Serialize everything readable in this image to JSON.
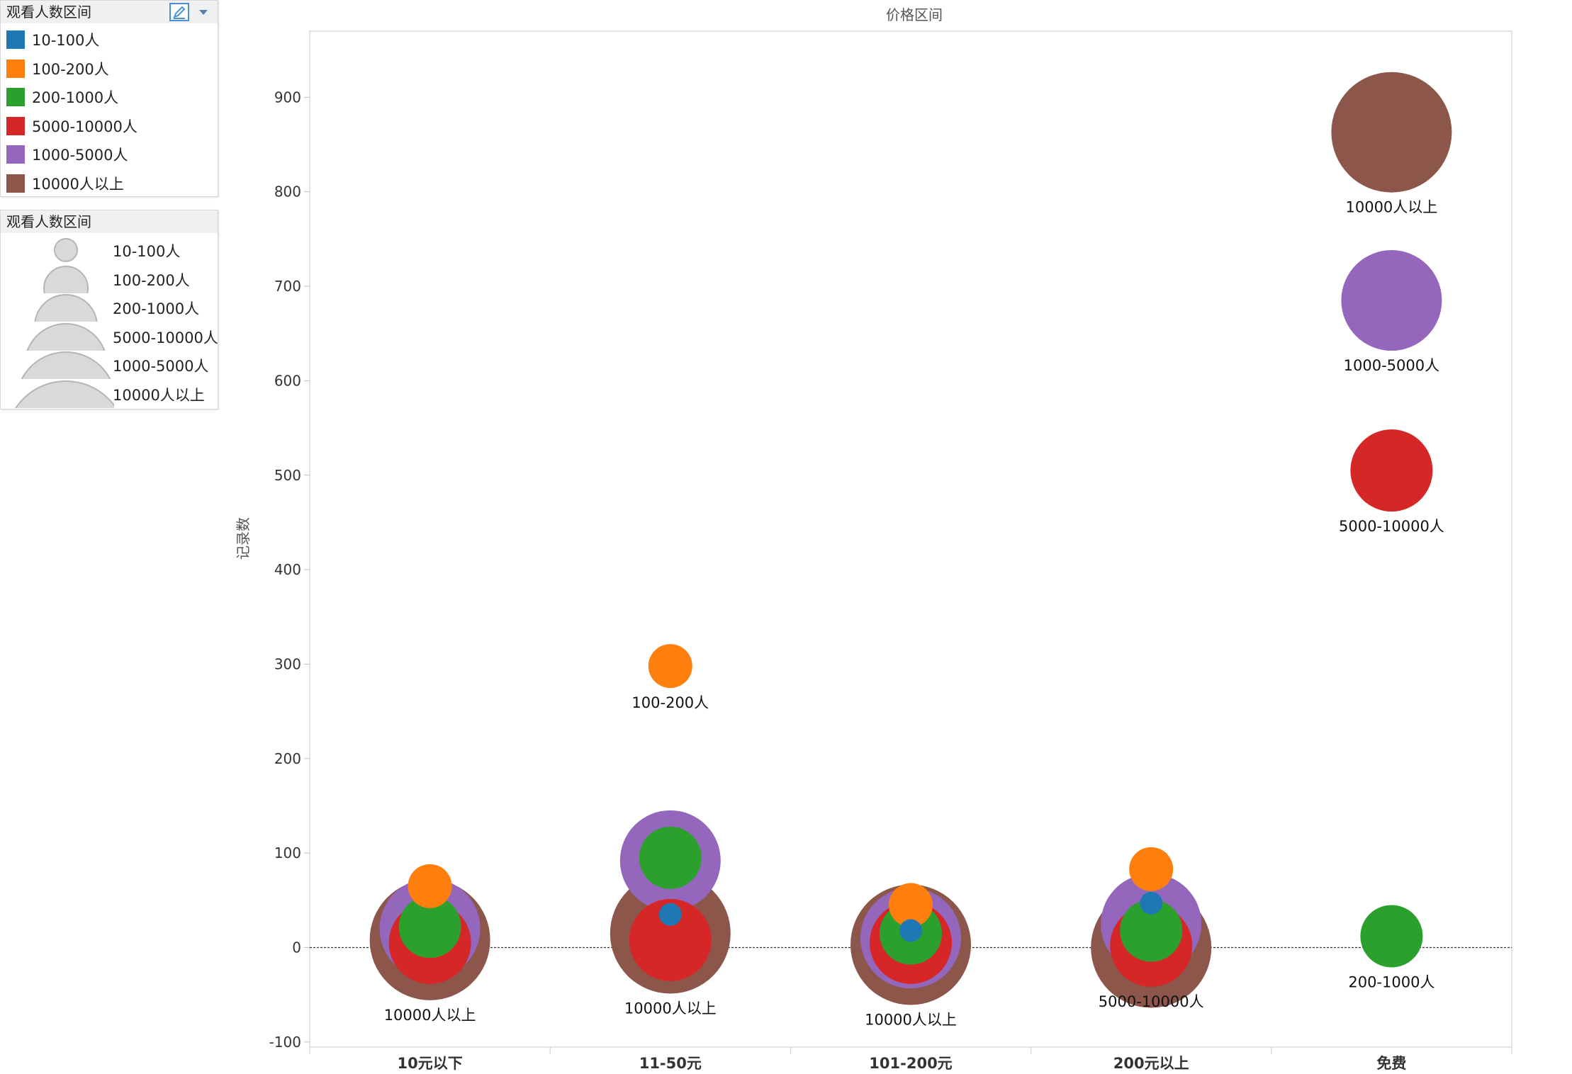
{
  "color_legend": {
    "title": "观看人数区间",
    "items": [
      {
        "label": "10-100人",
        "color": "#1f77b4"
      },
      {
        "label": "100-200人",
        "color": "#ff7f0e"
      },
      {
        "label": "200-1000人",
        "color": "#2ca02c"
      },
      {
        "label": "5000-10000人",
        "color": "#d62728"
      },
      {
        "label": "1000-5000人",
        "color": "#9467bd"
      },
      {
        "label": "10000人以上",
        "color": "#8c564b"
      }
    ]
  },
  "size_legend": {
    "title": "观看人数区间",
    "items": [
      "10-100人",
      "100-200人",
      "200-1000人",
      "5000-10000人",
      "1000-5000人",
      "10000人以上"
    ]
  },
  "chart_data": {
    "type": "scatter",
    "title": "价格区间",
    "xlabel": "",
    "ylabel": "记录数",
    "ylim": [
      -110,
      960
    ],
    "yticks": [
      -100,
      0,
      100,
      200,
      300,
      400,
      500,
      600,
      700,
      800,
      900
    ],
    "categories": [
      "10元以下",
      "11-50元",
      "101-200元",
      "200元以上",
      "免费"
    ],
    "size_order": [
      "10-100人",
      "100-200人",
      "200-1000人",
      "5000-10000人",
      "1000-5000人",
      "10000人以上"
    ],
    "reference_line": 0,
    "series": [
      {
        "name": "10-100人",
        "values": [
          null,
          35,
          18,
          47,
          null
        ]
      },
      {
        "name": "100-200人",
        "values": [
          65,
          298,
          45,
          83,
          null
        ]
      },
      {
        "name": "200-1000人",
        "values": [
          22,
          95,
          15,
          18,
          12
        ]
      },
      {
        "name": "5000-10000人",
        "values": [
          5,
          8,
          5,
          2,
          505
        ]
      },
      {
        "name": "1000-5000人",
        "values": [
          20,
          92,
          10,
          25,
          685
        ]
      },
      {
        "name": "10000人以上",
        "values": [
          8,
          15,
          3,
          0,
          863
        ]
      }
    ],
    "point_labels": [
      {
        "category": "10元以下",
        "value": 8,
        "text": "10000人以上"
      },
      {
        "category": "11-50元",
        "value": 298,
        "text": "100-200人"
      },
      {
        "category": "11-50元",
        "value": 15,
        "text": "10000人以上"
      },
      {
        "category": "101-200元",
        "value": 3,
        "text": "10000人以上"
      },
      {
        "category": "200元以上",
        "value": 2,
        "text": "5000-10000人"
      },
      {
        "category": "免费",
        "value": 863,
        "text": "10000人以上"
      },
      {
        "category": "免费",
        "value": 685,
        "text": "1000-5000人"
      },
      {
        "category": "免费",
        "value": 505,
        "text": "5000-10000人"
      },
      {
        "category": "免费",
        "value": 12,
        "text": "200-1000人"
      }
    ]
  }
}
